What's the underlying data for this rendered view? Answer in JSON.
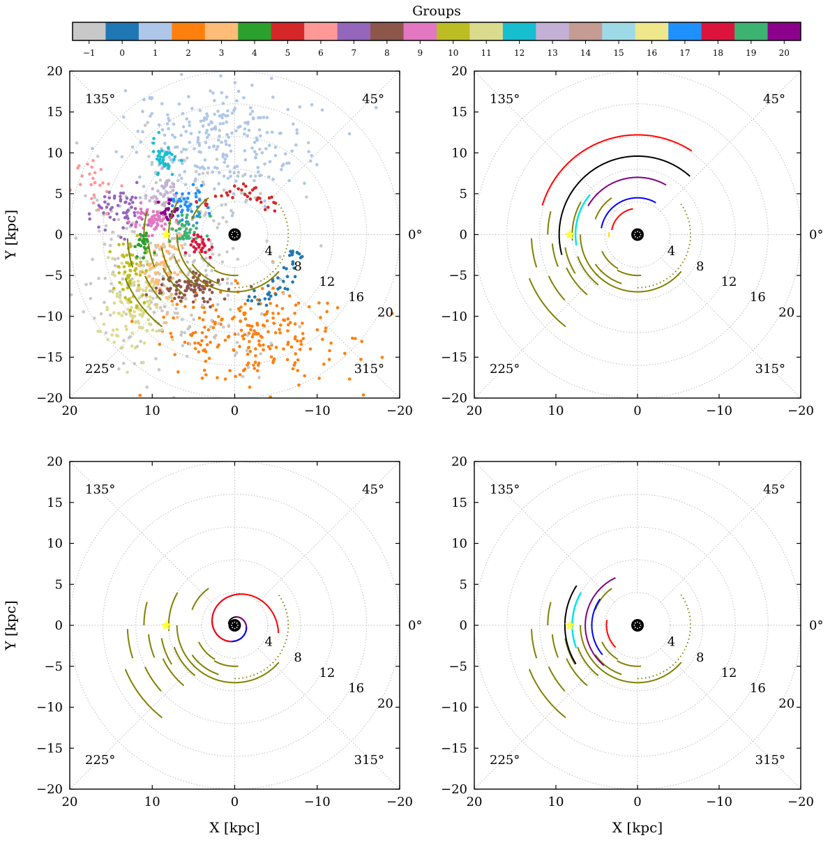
{
  "colorbar": {
    "title": "Groups",
    "labels": [
      "−1",
      "0",
      "1",
      "2",
      "3",
      "4",
      "5",
      "6",
      "7",
      "8",
      "9",
      "10",
      "11",
      "12",
      "13",
      "14",
      "15",
      "16",
      "17",
      "18",
      "19",
      "20"
    ],
    "colors": [
      "#c8c8c8",
      "#1f77b4",
      "#aec7e8",
      "#ff7f0e",
      "#ffbb78",
      "#2ca02c",
      "#d62728",
      "#ff9896",
      "#9467bd",
      "#8c564b",
      "#e377c2",
      "#bcbd22",
      "#dbdb8d",
      "#17becf",
      "#c5b0d5",
      "#c49c94",
      "#9edae5",
      "#f0e68c",
      "#1e90ff",
      "#dc143c",
      "#3cb371",
      "#8b008b"
    ]
  },
  "axes": {
    "xlabel": "X [kpc]",
    "ylabel": "Y [kpc]",
    "xticks": [
      "20",
      "10",
      "0",
      "−10",
      "−20"
    ],
    "yticks": [
      "20",
      "15",
      "10",
      "5",
      "0",
      "−5",
      "−10",
      "−15",
      "−20"
    ],
    "xlim": [
      20,
      -20
    ],
    "ylim": [
      -20,
      20
    ]
  },
  "polar": {
    "angle_labels": [
      "135°",
      "45°",
      "225°",
      "315°",
      "0°"
    ],
    "radius_labels": [
      "4",
      "8",
      "12",
      "16",
      "20"
    ]
  },
  "chart_data": [
    {
      "panel": "top-left",
      "type": "scatter",
      "title": "",
      "xlabel": "",
      "ylabel": "Y [kpc]",
      "xlim": [
        20,
        -20
      ],
      "ylim": [
        -20,
        20
      ],
      "sun": {
        "x": 8.3,
        "y": 0
      },
      "clouds": [
        {
          "group": "1",
          "color": "#aec7e8",
          "cx": 2.0,
          "cy": 11.5,
          "sx": 5.5,
          "sy": 3.5,
          "n": 260
        },
        {
          "group": "2",
          "color": "#ff7f0e",
          "cx": -2.0,
          "cy": -12.5,
          "sx": 6.0,
          "sy": 2.8,
          "n": 230
        },
        {
          "group": "-1",
          "color": "#c8c8c8",
          "cx": 7.0,
          "cy": -3.0,
          "sx": 6.0,
          "sy": 7.0,
          "n": 320
        },
        {
          "group": "11",
          "color": "#dbdb8d",
          "cx": 12.0,
          "cy": -9.0,
          "sx": 2.0,
          "sy": 3.0,
          "n": 120
        },
        {
          "group": "10",
          "color": "#bcbd22",
          "cx": 12.5,
          "cy": -4.5,
          "sx": 1.0,
          "sy": 2.0,
          "n": 60
        },
        {
          "group": "3",
          "color": "#ffbb78",
          "cx": 9.0,
          "cy": -4.5,
          "sx": 1.5,
          "sy": 2.0,
          "n": 80
        },
        {
          "group": "8",
          "color": "#8c564b",
          "cx": 5.5,
          "cy": -6.5,
          "sx": 2.0,
          "sy": 0.8,
          "n": 90
        },
        {
          "group": "7",
          "color": "#9467bd",
          "cx": 13.5,
          "cy": 3.0,
          "sx": 1.5,
          "sy": 1.5,
          "n": 60
        },
        {
          "group": "9",
          "color": "#e377c2",
          "cx": 10.0,
          "cy": 1.8,
          "sx": 1.2,
          "sy": 0.8,
          "n": 60
        },
        {
          "group": "12",
          "color": "#17becf",
          "cx": 8.5,
          "cy": 9.0,
          "sx": 0.8,
          "sy": 1.2,
          "n": 40
        },
        {
          "group": "13",
          "color": "#c5b0d5",
          "cx": 8.5,
          "cy": 5.0,
          "sx": 1.0,
          "sy": 1.2,
          "n": 35
        },
        {
          "group": "17",
          "color": "#1e90ff",
          "cx": 5.5,
          "cy": 3.5,
          "sx": 1.0,
          "sy": 1.0,
          "n": 45
        },
        {
          "group": "19",
          "color": "#3cb371",
          "cx": 6.0,
          "cy": 1.0,
          "sx": 1.0,
          "sy": 1.0,
          "n": 40
        },
        {
          "group": "20",
          "color": "#8b008b",
          "cx": 8.0,
          "cy": 3.0,
          "sx": 0.6,
          "sy": 0.8,
          "n": 25
        },
        {
          "group": "4",
          "color": "#2ca02c",
          "cx": 11.0,
          "cy": -1.0,
          "sx": 0.5,
          "sy": 0.8,
          "n": 25
        },
        {
          "group": "6",
          "color": "#ff9896",
          "cx": 16.5,
          "cy": 6.0,
          "sx": 1.2,
          "sy": 2.0,
          "n": 25
        },
        {
          "group": "18",
          "color": "#dc143c",
          "cx": 4.0,
          "cy": -1.5,
          "sx": 0.7,
          "sy": 0.7,
          "n": 30
        }
      ],
      "ring_groups": [
        {
          "group": "0",
          "color": "#1f77b4",
          "r_min": 7.0,
          "r_max": 9.5,
          "ang_min": 280,
          "ang_max": 345,
          "n": 45
        },
        {
          "group": "5",
          "color": "#d62728",
          "r_min": 4.5,
          "r_max": 6.5,
          "ang_min": 30,
          "ang_max": 140,
          "n": 35
        }
      ]
    },
    {
      "panel": "top-right",
      "type": "line",
      "title": "",
      "xlabel": "",
      "ylabel": "",
      "xlim": [
        20,
        -20
      ],
      "ylim": [
        -20,
        20
      ],
      "sun": {
        "x": 8.3,
        "y": 0
      },
      "arcs": [
        {
          "color": "#ff0000",
          "r": 12.2,
          "a1": 57,
          "a2": 163,
          "w": 2
        },
        {
          "color": "#000000",
          "r": 9.6,
          "a1": 48,
          "a2": 195,
          "w": 2
        },
        {
          "color": "#800080",
          "r": 7.0,
          "a1": 60,
          "a2": 150,
          "w": 2
        },
        {
          "color": "#0000ff",
          "r": 4.5,
          "a1": 60,
          "a2": 170,
          "w": 2
        },
        {
          "color": "#ff0000",
          "r": 3.2,
          "a1": 100,
          "a2": 170,
          "w": 2
        },
        {
          "color": "#00e5ee",
          "r": 7.6,
          "a1": 140,
          "a2": 190,
          "w": 2.5
        },
        {
          "color": "#ffd700",
          "r": 3.5,
          "a1": 175,
          "a2": 185,
          "w": 2
        }
      ]
    },
    {
      "panel": "bottom-left",
      "type": "line",
      "title": "",
      "xlabel": "X [kpc]",
      "ylabel": "Y [kpc]",
      "xlim": [
        20,
        -20
      ],
      "ylim": [
        -20,
        20
      ],
      "sun": {
        "x": 8.3,
        "y": 0
      },
      "spirals": [
        {
          "color": "#000000",
          "r0": 0.8,
          "k": 0.21,
          "t0": -20,
          "t1": 250
        },
        {
          "color": "#800080",
          "r0": 0.8,
          "k": 0.21,
          "t0": 70,
          "t1": 340
        },
        {
          "color": "#0000ff",
          "r0": 0.8,
          "k": 0.21,
          "t0": 160,
          "t1": 430
        },
        {
          "color": "#ff0000",
          "r0": 0.8,
          "k": 0.21,
          "t0": 250,
          "t1": 520
        }
      ]
    },
    {
      "panel": "bottom-right",
      "type": "line",
      "title": "",
      "xlabel": "X [kpc]",
      "ylabel": "",
      "xlim": [
        20,
        -20
      ],
      "ylim": [
        -20,
        20
      ],
      "sun": {
        "x": 8.3,
        "y": 0
      },
      "arcs": [
        {
          "color": "#000000",
          "r": 8.9,
          "a1": 147,
          "a2": 212,
          "w": 2
        },
        {
          "color": "#800080",
          "r": 6.4,
          "a1": 115,
          "a2": 230,
          "w": 2
        },
        {
          "color": "#0000ff",
          "r": 5.6,
          "a1": 145,
          "a2": 220,
          "w": 2
        },
        {
          "color": "#ff0000",
          "r": 3.8,
          "a1": 170,
          "a2": 225,
          "w": 2
        },
        {
          "color": "#00e5ee",
          "r": 8.0,
          "a1": 150,
          "a2": 200,
          "w": 2.5
        }
      ]
    }
  ],
  "olive_arcs": [
    {
      "r": 7.0,
      "a1": 180,
      "a2": 320
    },
    {
      "r": 8.0,
      "a1": 150,
      "a2": 185
    },
    {
      "r": 9.0,
      "a1": 190,
      "a2": 212
    },
    {
      "r": 9.6,
      "a1": 205,
      "a2": 230
    },
    {
      "r": 10.5,
      "a1": 186,
      "a2": 202
    },
    {
      "r": 11.0,
      "a1": 165,
      "a2": 180
    },
    {
      "r": 12.0,
      "a1": 205,
      "a2": 222
    },
    {
      "r": 13.0,
      "a1": 182,
      "a2": 198
    },
    {
      "r": 14.3,
      "a1": 202,
      "a2": 232
    },
    {
      "r": 7.8,
      "a1": 200,
      "a2": 232
    },
    {
      "r": 6.3,
      "a1": 215,
      "a2": 252
    },
    {
      "r": 5.5,
      "a1": 125,
      "a2": 160
    },
    {
      "r": 4.8,
      "a1": 205,
      "a2": 240
    },
    {
      "r": 5.0,
      "a1": 240,
      "a2": 275
    }
  ],
  "olive_dotted_arc": {
    "r": 6.5,
    "a1": 270,
    "a2": 395
  }
}
